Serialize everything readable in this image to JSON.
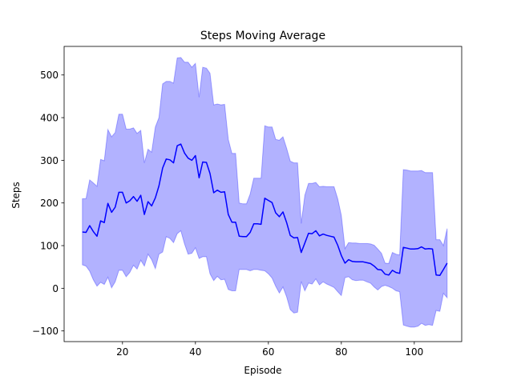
{
  "chart_data": {
    "type": "line",
    "title": "Steps Moving Average",
    "xlabel": "Episode",
    "ylabel": "Steps",
    "xlim": [
      4,
      113
    ],
    "ylim": [
      -125,
      567
    ],
    "xticks": [
      20,
      40,
      60,
      80,
      100
    ],
    "yticks": [
      -100,
      0,
      100,
      200,
      300,
      400,
      500
    ],
    "grid": false,
    "legend": "none",
    "colors": {
      "line": "#0000ff",
      "band_fill": "#0000ff",
      "band_opacity": 0.3
    },
    "series": [
      {
        "kind": "line",
        "x": [
          9,
          10,
          11,
          12,
          13,
          14,
          15,
          16,
          17,
          18,
          19,
          20,
          21,
          22,
          23,
          24,
          25,
          26,
          27,
          28,
          29,
          30,
          31,
          32,
          33,
          34,
          35,
          36,
          37,
          38,
          39,
          40,
          41,
          42,
          43,
          44,
          45,
          46,
          47,
          48,
          49,
          50,
          51,
          52,
          53,
          54,
          55,
          56,
          57,
          58,
          59,
          60,
          61,
          62,
          63,
          64,
          65,
          66,
          67,
          68,
          69,
          70,
          71,
          72,
          73,
          74,
          75,
          76,
          77,
          78,
          79,
          80,
          81,
          82,
          83,
          84,
          85,
          86,
          87,
          88,
          89,
          90,
          91,
          92,
          93,
          94,
          95,
          96,
          97,
          98,
          99,
          100,
          101,
          102,
          103,
          104,
          105,
          106,
          107,
          108,
          109
        ],
        "y": [
          132,
          131,
          147,
          133,
          122,
          158,
          154,
          199,
          178,
          190,
          225,
          225,
          200,
          205,
          215,
          204,
          218,
          173,
          203,
          193,
          212,
          240,
          282,
          303,
          301,
          294,
          334,
          338,
          317,
          305,
          300,
          311,
          259,
          296,
          295,
          269,
          224,
          230,
          225,
          226,
          173,
          155,
          155,
          122,
          121,
          121,
          131,
          151,
          151,
          150,
          211,
          206,
          201,
          177,
          168,
          179,
          154,
          124,
          118,
          119,
          84,
          106,
          129,
          128,
          135,
          123,
          127,
          124,
          122,
          120,
          101,
          77,
          59,
          67,
          63,
          62,
          62,
          62,
          60,
          58,
          52,
          44,
          43,
          33,
          31,
          42,
          37,
          35,
          96,
          94,
          92,
          92,
          93,
          97,
          92,
          93,
          92,
          31,
          30,
          44,
          59
        ]
      },
      {
        "kind": "band_upper",
        "x": [
          9,
          10,
          11,
          12,
          13,
          14,
          15,
          16,
          17,
          18,
          19,
          20,
          21,
          22,
          23,
          24,
          25,
          26,
          27,
          28,
          29,
          30,
          31,
          32,
          33,
          34,
          35,
          36,
          37,
          38,
          39,
          40,
          41,
          42,
          43,
          44,
          45,
          46,
          47,
          48,
          49,
          50,
          51,
          52,
          53,
          54,
          55,
          56,
          57,
          58,
          59,
          60,
          61,
          62,
          63,
          64,
          65,
          66,
          67,
          68,
          69,
          70,
          71,
          72,
          73,
          74,
          75,
          76,
          77,
          78,
          79,
          80,
          81,
          82,
          83,
          84,
          85,
          86,
          87,
          88,
          89,
          90,
          91,
          92,
          93,
          94,
          95,
          96,
          97,
          98,
          99,
          100,
          101,
          102,
          103,
          104,
          105,
          106,
          107,
          108,
          109
        ],
        "y": [
          210,
          210,
          254,
          247,
          239,
          302,
          299,
          372,
          355,
          365,
          408,
          408,
          373,
          373,
          376,
          363,
          370,
          294,
          326,
          319,
          378,
          400,
          479,
          485,
          485,
          481,
          540,
          541,
          530,
          530,
          518,
          527,
          448,
          518,
          516,
          504,
          430,
          432,
          430,
          431,
          349,
          316,
          316,
          200,
          198,
          198,
          221,
          258,
          258,
          258,
          381,
          378,
          378,
          349,
          347,
          355,
          328,
          298,
          294,
          294,
          152,
          218,
          246,
          246,
          248,
          238,
          239,
          238,
          238,
          238,
          210,
          171,
          93,
          107,
          106,
          106,
          105,
          105,
          105,
          104,
          101,
          92,
          82,
          59,
          58,
          84,
          80,
          78,
          278,
          277,
          275,
          275,
          275,
          276,
          271,
          271,
          271,
          114,
          114,
          100,
          140
        ]
      },
      {
        "kind": "band_lower",
        "x": [
          9,
          10,
          11,
          12,
          13,
          14,
          15,
          16,
          17,
          18,
          19,
          20,
          21,
          22,
          23,
          24,
          25,
          26,
          27,
          28,
          29,
          30,
          31,
          32,
          33,
          34,
          35,
          36,
          37,
          38,
          39,
          40,
          41,
          42,
          43,
          44,
          45,
          46,
          47,
          48,
          49,
          50,
          51,
          52,
          53,
          54,
          55,
          56,
          57,
          58,
          59,
          60,
          61,
          62,
          63,
          64,
          65,
          66,
          67,
          68,
          69,
          70,
          71,
          72,
          73,
          74,
          75,
          76,
          77,
          78,
          79,
          80,
          81,
          82,
          83,
          84,
          85,
          86,
          87,
          88,
          89,
          90,
          91,
          92,
          93,
          94,
          95,
          96,
          97,
          98,
          99,
          100,
          101,
          102,
          103,
          104,
          105,
          106,
          107,
          108,
          109
        ],
        "y": [
          55,
          52,
          40,
          20,
          5,
          14,
          9,
          26,
          1,
          15,
          42,
          42,
          27,
          37,
          54,
          45,
          66,
          52,
          80,
          67,
          46,
          80,
          85,
          121,
          117,
          107,
          128,
          135,
          104,
          80,
          82,
          95,
          70,
          74,
          74,
          34,
          18,
          28,
          20,
          21,
          -3,
          -6,
          -6,
          44,
          44,
          44,
          41,
          44,
          44,
          42,
          41,
          34,
          24,
          5,
          -11,
          3,
          -20,
          -50,
          -58,
          -56,
          16,
          -6,
          12,
          10,
          22,
          8,
          15,
          10,
          6,
          2,
          -8,
          -17,
          25,
          27,
          20,
          18,
          19,
          19,
          15,
          12,
          3,
          -4,
          4,
          7,
          4,
          0,
          -6,
          -8,
          -86,
          -89,
          -91,
          -91,
          -89,
          -82,
          -87,
          -85,
          -87,
          -52,
          -54,
          -12,
          -22
        ]
      }
    ]
  }
}
